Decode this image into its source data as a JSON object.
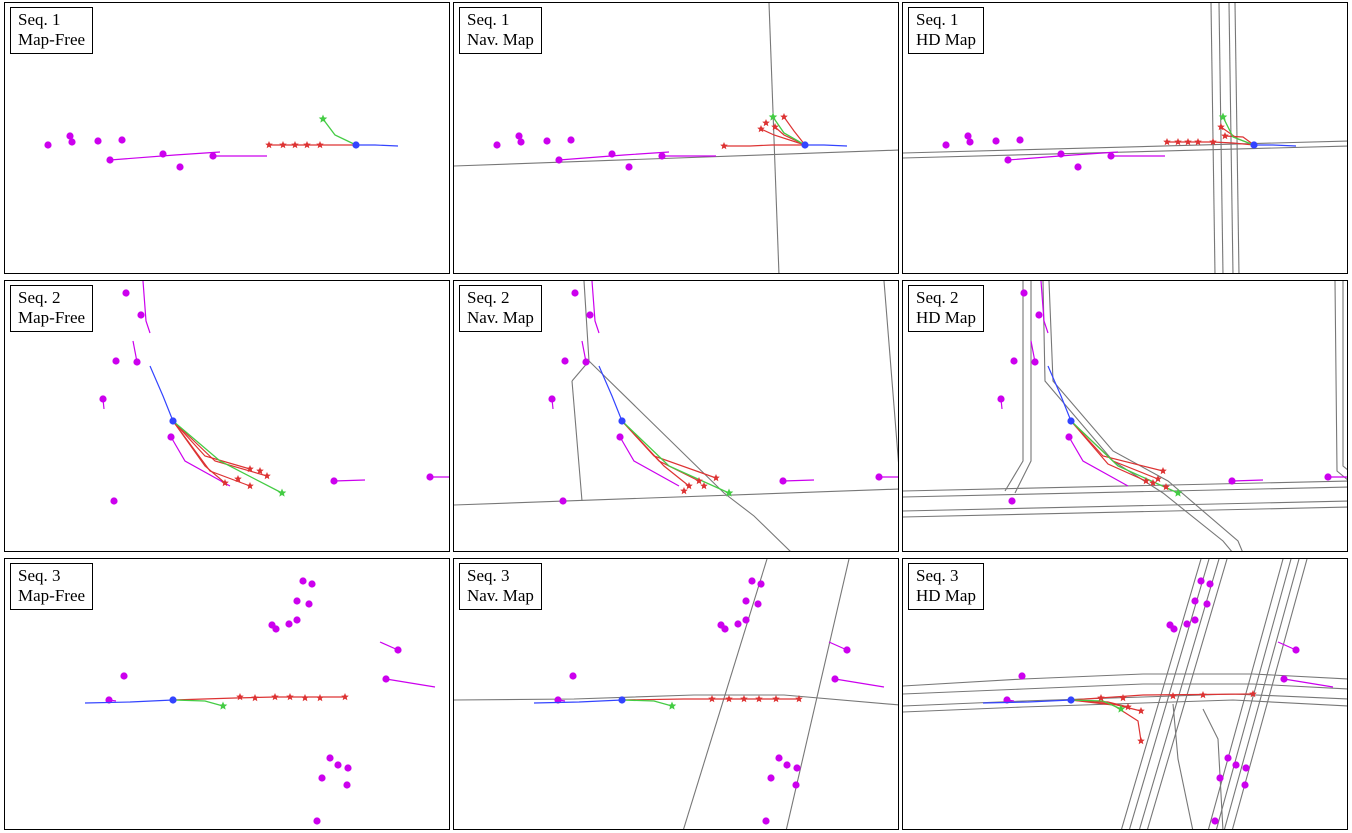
{
  "colors": {
    "agent": "#cc00ee",
    "history": "#3344ff",
    "prediction": "#dd3333",
    "ground_truth": "#44cc44",
    "map": "#777777"
  },
  "panels": [
    {
      "id": "s1-free",
      "seq": "Seq. 1",
      "mode": "Map-Free",
      "map": "none",
      "scene": 1
    },
    {
      "id": "s1-nav",
      "seq": "Seq. 1",
      "mode": "Nav. Map",
      "map": "nav",
      "scene": 1
    },
    {
      "id": "s1-hd",
      "seq": "Seq. 1",
      "mode": "HD Map",
      "map": "hd",
      "scene": 1
    },
    {
      "id": "s2-free",
      "seq": "Seq. 2",
      "mode": "Map-Free",
      "map": "none",
      "scene": 2
    },
    {
      "id": "s2-nav",
      "seq": "Seq. 2",
      "mode": "Nav. Map",
      "map": "nav",
      "scene": 2
    },
    {
      "id": "s2-hd",
      "seq": "Seq. 2",
      "mode": "HD Map",
      "map": "hd",
      "scene": 2
    },
    {
      "id": "s3-free",
      "seq": "Seq. 3",
      "mode": "Map-Free",
      "map": "none",
      "scene": 3
    },
    {
      "id": "s3-nav",
      "seq": "Seq. 3",
      "mode": "Nav. Map",
      "map": "nav",
      "scene": 3
    },
    {
      "id": "s3-hd",
      "seq": "Seq. 3",
      "mode": "HD Map",
      "map": "hd",
      "scene": 3
    }
  ]
}
